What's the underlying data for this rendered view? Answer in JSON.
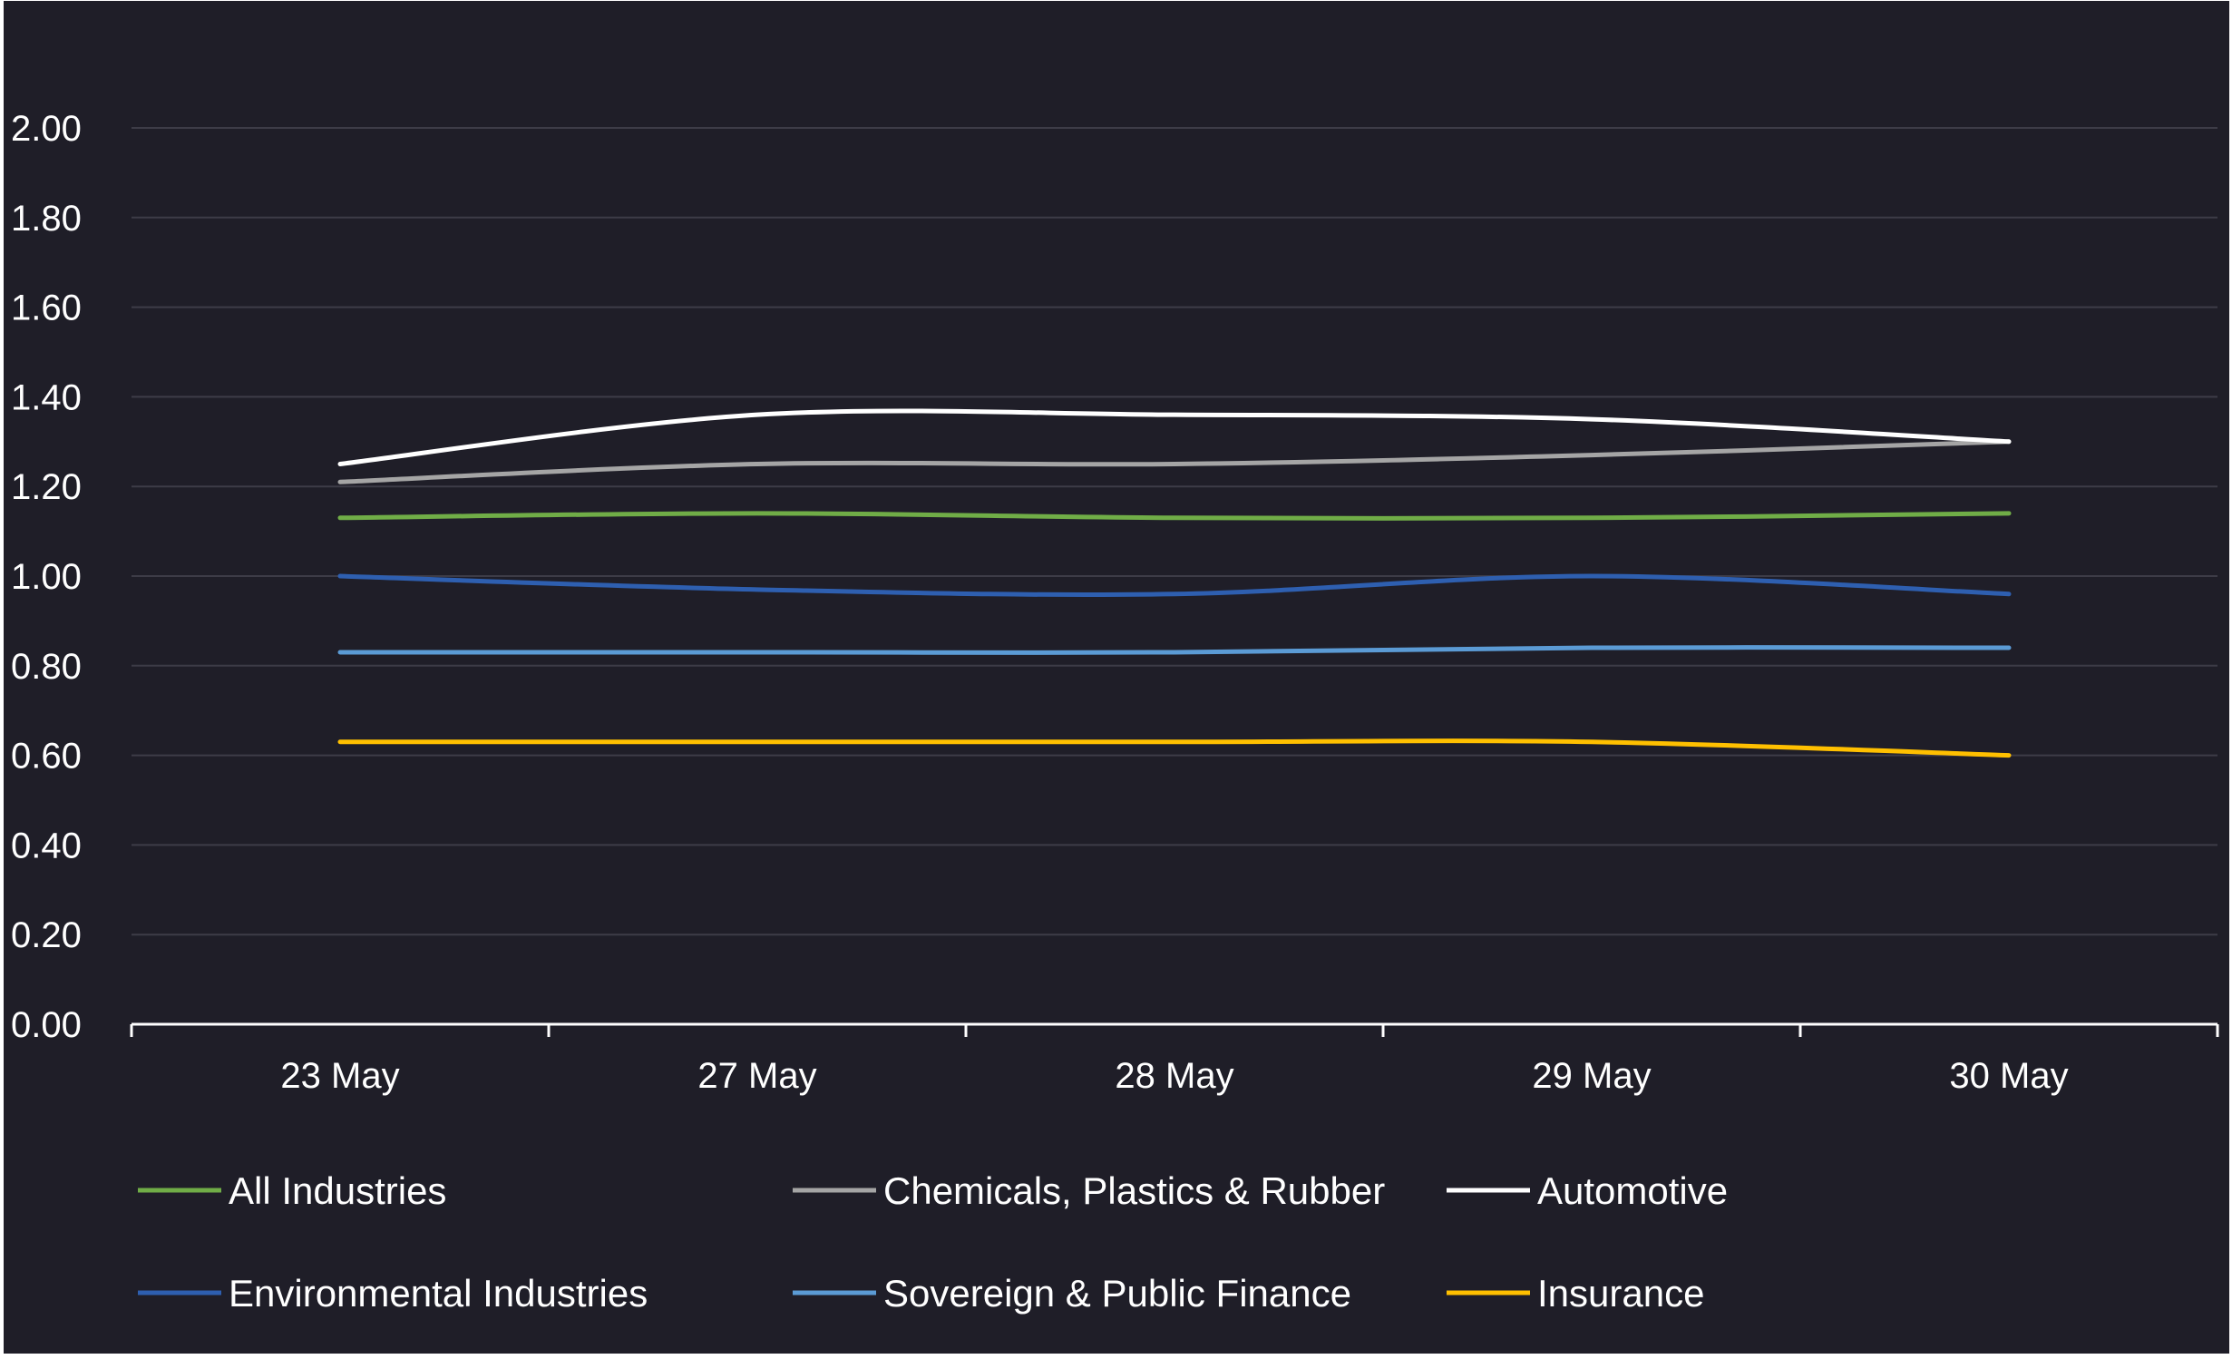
{
  "chart_data": {
    "type": "line",
    "title": "",
    "xlabel": "",
    "ylabel": "",
    "categories": [
      "23 May",
      "27 May",
      "28 May",
      "29 May",
      "30 May"
    ],
    "ylim": [
      0,
      2.0
    ],
    "yticks": [
      "0.00",
      "0.20",
      "0.40",
      "0.60",
      "0.80",
      "1.00",
      "1.20",
      "1.40",
      "1.60",
      "1.80",
      "2.00"
    ],
    "grid": true,
    "legend_position": "bottom",
    "series": [
      {
        "name": "All Industries",
        "color": "#70ad47",
        "values": [
          1.13,
          1.14,
          1.13,
          1.13,
          1.14
        ]
      },
      {
        "name": "Chemicals, Plastics & Rubber",
        "color": "#a5a5a5",
        "values": [
          1.21,
          1.25,
          1.25,
          1.27,
          1.3
        ]
      },
      {
        "name": "Automotive",
        "color": "#ffffff",
        "values": [
          1.25,
          1.36,
          1.36,
          1.35,
          1.3
        ]
      },
      {
        "name": "Environmental Industries",
        "color": "#2e5fb0",
        "values": [
          1.0,
          0.97,
          0.96,
          1.0,
          0.96
        ]
      },
      {
        "name": "Sovereign & Public Finance",
        "color": "#5b9bd5",
        "values": [
          0.83,
          0.83,
          0.83,
          0.84,
          0.84
        ]
      },
      {
        "name": "Insurance",
        "color": "#ffc000",
        "values": [
          0.63,
          0.63,
          0.63,
          0.63,
          0.6
        ]
      }
    ]
  }
}
